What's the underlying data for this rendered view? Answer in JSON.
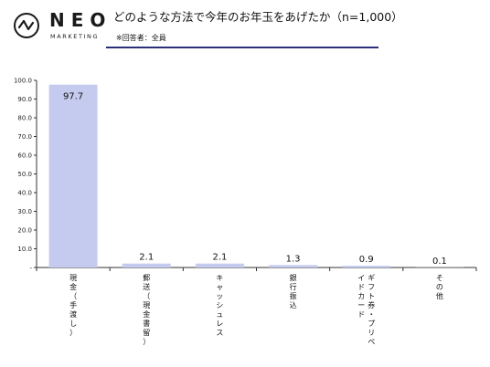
{
  "brand": {
    "name": "NEO",
    "tagline": "MARKETING"
  },
  "header": {
    "title": "どのような方法で今年のお年玉をあげたか（n=1,000）",
    "subtitle": "※回答者：全員"
  },
  "colors": {
    "bar": "#c4cbee",
    "rule": "#2a2f7a",
    "axis": "#333333"
  },
  "chart_data": {
    "type": "bar",
    "title": "どのような方法で今年のお年玉をあげたか（n=1,000）",
    "xlabel": "",
    "ylabel": "",
    "ylim": [
      0,
      100
    ],
    "yticks": [
      "-",
      "10.0",
      "20.0",
      "30.0",
      "40.0",
      "50.0",
      "60.0",
      "70.0",
      "80.0",
      "90.0",
      "100.0"
    ],
    "categories": [
      "現金（手渡し）",
      "郵送（現金書留）",
      "キャッシュレス",
      "銀行振込",
      "ギフト券・プリペイドカード",
      "その他"
    ],
    "values": [
      97.7,
      2.1,
      2.1,
      1.3,
      0.9,
      0.1
    ],
    "data_labels": [
      "97.7",
      "2.1",
      "2.1",
      "1.3",
      "0.9",
      "0.1"
    ],
    "grid": false,
    "legend": "none"
  }
}
